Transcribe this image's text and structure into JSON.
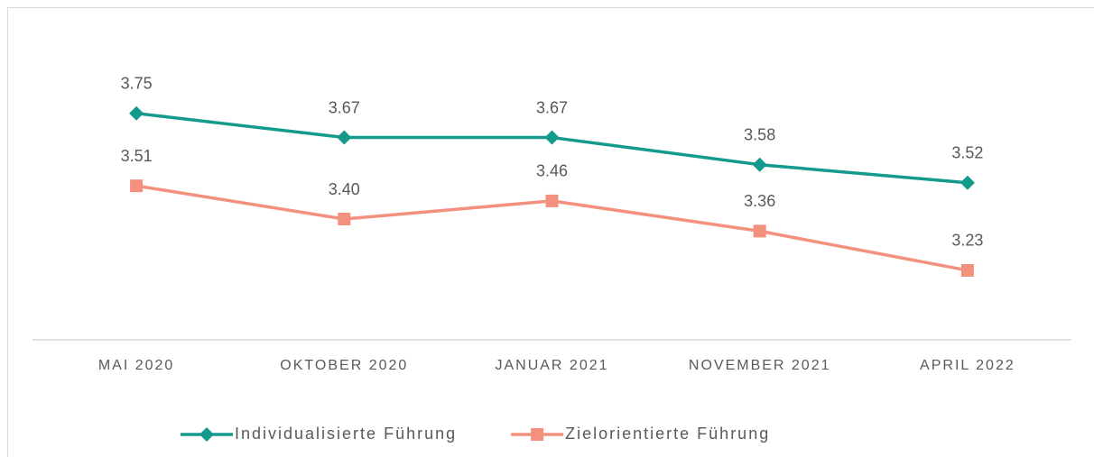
{
  "chart_data": {
    "type": "line",
    "categories": [
      "MAI 2020",
      "OKTOBER 2020",
      "JANUAR 2021",
      "NOVEMBER 2021",
      "APRIL 2022"
    ],
    "series": [
      {
        "name": "Individualisierte Führung",
        "color": "#139a8c",
        "marker": "diamond",
        "values": [
          3.75,
          3.67,
          3.67,
          3.58,
          3.52
        ],
        "value_labels": [
          "3.75",
          "3.67",
          "3.67",
          "3.58",
          "3.52"
        ]
      },
      {
        "name": "Zielorientierte Führung",
        "color": "#f4907e",
        "marker": "square",
        "values": [
          3.51,
          3.4,
          3.46,
          3.36,
          3.23
        ],
        "value_labels": [
          "3.51",
          "3.40",
          "3.46",
          "3.36",
          "3.23"
        ]
      }
    ],
    "ylim": [
      3,
      4
    ],
    "grid": false,
    "legend": "bottom"
  }
}
